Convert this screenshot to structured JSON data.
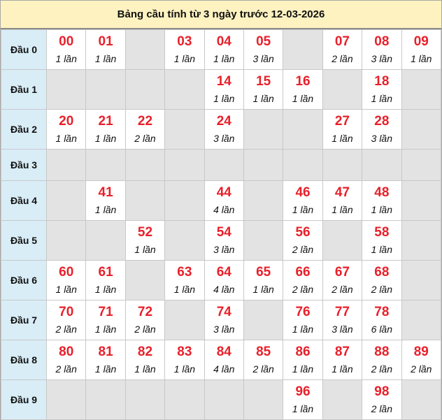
{
  "title": "Bảng cầu tính từ 3 ngày trước 12-03-2026",
  "colors": {
    "number": "#e8202a",
    "header_bg": "#fef2c0",
    "row_label_bg": "#d9edf7",
    "empty_cell_bg": "#e3e3e3"
  },
  "rows": [
    {
      "label": "Đầu 0",
      "cells": [
        {
          "num": "00",
          "count": "1 lần"
        },
        {
          "num": "01",
          "count": "1 lần"
        },
        null,
        {
          "num": "03",
          "count": "1 lần"
        },
        {
          "num": "04",
          "count": "1 lần"
        },
        {
          "num": "05",
          "count": "3 lần"
        },
        null,
        {
          "num": "07",
          "count": "2 lần"
        },
        {
          "num": "08",
          "count": "3 lần"
        },
        {
          "num": "09",
          "count": "1 lần"
        }
      ]
    },
    {
      "label": "Đầu 1",
      "cells": [
        null,
        null,
        null,
        null,
        {
          "num": "14",
          "count": "1 lần"
        },
        {
          "num": "15",
          "count": "1 lần"
        },
        {
          "num": "16",
          "count": "1 lần"
        },
        null,
        {
          "num": "18",
          "count": "1 lần"
        },
        null
      ]
    },
    {
      "label": "Đầu 2",
      "cells": [
        {
          "num": "20",
          "count": "1 lần"
        },
        {
          "num": "21",
          "count": "1 lần"
        },
        {
          "num": "22",
          "count": "2 lần"
        },
        null,
        {
          "num": "24",
          "count": "3 lần"
        },
        null,
        null,
        {
          "num": "27",
          "count": "1 lần"
        },
        {
          "num": "28",
          "count": "3 lần"
        },
        null
      ]
    },
    {
      "label": "Đầu 3",
      "cells": [
        null,
        null,
        null,
        null,
        null,
        null,
        null,
        null,
        null,
        null
      ]
    },
    {
      "label": "Đầu 4",
      "cells": [
        null,
        {
          "num": "41",
          "count": "1 lần"
        },
        null,
        null,
        {
          "num": "44",
          "count": "4 lần"
        },
        null,
        {
          "num": "46",
          "count": "1 lần"
        },
        {
          "num": "47",
          "count": "1 lần"
        },
        {
          "num": "48",
          "count": "1 lần"
        },
        null
      ]
    },
    {
      "label": "Đầu 5",
      "cells": [
        null,
        null,
        {
          "num": "52",
          "count": "1 lần"
        },
        null,
        {
          "num": "54",
          "count": "3 lần"
        },
        null,
        {
          "num": "56",
          "count": "2 lần"
        },
        null,
        {
          "num": "58",
          "count": "1 lần"
        },
        null
      ]
    },
    {
      "label": "Đầu 6",
      "cells": [
        {
          "num": "60",
          "count": "1 lần"
        },
        {
          "num": "61",
          "count": "1 lần"
        },
        null,
        {
          "num": "63",
          "count": "1 lần"
        },
        {
          "num": "64",
          "count": "4 lần"
        },
        {
          "num": "65",
          "count": "1 lần"
        },
        {
          "num": "66",
          "count": "2 lần"
        },
        {
          "num": "67",
          "count": "2 lần"
        },
        {
          "num": "68",
          "count": "2 lần"
        },
        null
      ]
    },
    {
      "label": "Đầu 7",
      "cells": [
        {
          "num": "70",
          "count": "2 lần"
        },
        {
          "num": "71",
          "count": "1 lần"
        },
        {
          "num": "72",
          "count": "2 lần"
        },
        null,
        {
          "num": "74",
          "count": "3 lần"
        },
        null,
        {
          "num": "76",
          "count": "1 lần"
        },
        {
          "num": "77",
          "count": "3 lần"
        },
        {
          "num": "78",
          "count": "6 lần"
        },
        null
      ]
    },
    {
      "label": "Đầu 8",
      "cells": [
        {
          "num": "80",
          "count": "2 lần"
        },
        {
          "num": "81",
          "count": "1 lần"
        },
        {
          "num": "82",
          "count": "1 lần"
        },
        {
          "num": "83",
          "count": "1 lần"
        },
        {
          "num": "84",
          "count": "4 lần"
        },
        {
          "num": "85",
          "count": "2 lần"
        },
        {
          "num": "86",
          "count": "1 lần"
        },
        {
          "num": "87",
          "count": "1 lần"
        },
        {
          "num": "88",
          "count": "2 lần"
        },
        {
          "num": "89",
          "count": "2 lần"
        }
      ]
    },
    {
      "label": "Đầu 9",
      "cells": [
        null,
        null,
        null,
        null,
        null,
        null,
        {
          "num": "96",
          "count": "1 lần"
        },
        null,
        {
          "num": "98",
          "count": "2 lần"
        },
        null
      ]
    }
  ]
}
